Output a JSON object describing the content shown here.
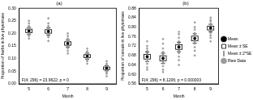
{
  "chart_data": [
    {
      "type": "box",
      "title": "(a)",
      "x_label": "Month",
      "y_label": "Proportion of herbs in live phytomass",
      "annotation": "F(4; 296) = 23.9622; p = 0",
      "x": [
        5,
        6,
        7,
        8,
        9
      ],
      "xlim": [
        4.5,
        9.5
      ],
      "xticks": [
        5,
        6,
        7,
        8,
        9
      ],
      "ylim": [
        0,
        0.3
      ],
      "yticks": [
        {
          "value": 0,
          "label": "0.00"
        },
        0.05,
        {
          "value": 0.1,
          "label": "0.10"
        },
        0.15,
        {
          "value": 0.2,
          "label": "0.20"
        },
        0.25,
        {
          "value": 0.3,
          "label": "0.30"
        }
      ],
      "grid": false,
      "series": [
        {
          "name": "Mean",
          "type": "scatter",
          "marker": "circle",
          "color": "#000000",
          "values": [
            0.21,
            0.208,
            0.16,
            0.11,
            0.062
          ]
        },
        {
          "name": "Mean ± SE",
          "type": "box",
          "marker": "square",
          "color": "#000000",
          "values": [
            [
              0.203,
              0.217
            ],
            [
              0.201,
              0.215
            ],
            [
              0.153,
              0.167
            ],
            [
              0.104,
              0.116
            ],
            [
              0.057,
              0.067
            ]
          ]
        },
        {
          "name": "Mean ± 2*SE",
          "type": "errorbar",
          "marker": "whisker",
          "color": "#000000",
          "values": [
            [
              0.196,
              0.224
            ],
            [
              0.194,
              0.222
            ],
            [
              0.146,
              0.174
            ],
            [
              0.098,
              0.122
            ],
            [
              0.052,
              0.072
            ]
          ]
        },
        {
          "name": "Raw Data",
          "type": "scatter",
          "marker": "circle",
          "color": "#9a9a9a",
          "values": [
            [
              0.18,
              0.19,
              0.195,
              0.2,
              0.205,
              0.21,
              0.21,
              0.215,
              0.22,
              0.225,
              0.23,
              0.24,
              0.25
            ],
            [
              0.17,
              0.185,
              0.19,
              0.2,
              0.205,
              0.21,
              0.215,
              0.22,
              0.225,
              0.23,
              0.24,
              0.26
            ],
            [
              0.12,
              0.13,
              0.14,
              0.15,
              0.155,
              0.16,
              0.165,
              0.17,
              0.175,
              0.18,
              0.19,
              0.2
            ],
            [
              0.08,
              0.09,
              0.095,
              0.1,
              0.105,
              0.11,
              0.115,
              0.12,
              0.125,
              0.13,
              0.14
            ],
            [
              0.03,
              0.04,
              0.045,
              0.05,
              0.055,
              0.06,
              0.065,
              0.07,
              0.075,
              0.08,
              0.09
            ]
          ]
        }
      ]
    },
    {
      "type": "box",
      "title": "(b)",
      "x_label": "Month",
      "y_label": "Proportion of cereals in live phytomass",
      "annotation": "F(4; 296) = 8.1206; p = 0.000003",
      "x": [
        5,
        6,
        7,
        8,
        9
      ],
      "xlim": [
        4.5,
        9.5
      ],
      "xticks": [
        5,
        6,
        7,
        8,
        9
      ],
      "ylim": [
        0.56,
        0.88
      ],
      "yticks": [
        0.56,
        {
          "value": 0.6,
          "label": "0.60"
        },
        0.64,
        0.68,
        0.72,
        0.76,
        {
          "value": 0.8,
          "label": "0.80"
        },
        0.84,
        0.88
      ],
      "grid": false,
      "legend": "right",
      "series": [
        {
          "name": "Mean",
          "type": "scatter",
          "marker": "circle",
          "color": "#000000",
          "values": [
            0.675,
            0.668,
            0.716,
            0.752,
            0.796
          ]
        },
        {
          "name": "Mean ± SE",
          "type": "box",
          "marker": "square",
          "color": "#000000",
          "values": [
            [
              0.665,
              0.685
            ],
            [
              0.657,
              0.679
            ],
            [
              0.706,
              0.726
            ],
            [
              0.742,
              0.762
            ],
            [
              0.788,
              0.804
            ]
          ]
        },
        {
          "name": "Mean ± 2*SE",
          "type": "errorbar",
          "marker": "whisker",
          "color": "#000000",
          "values": [
            [
              0.655,
              0.695
            ],
            [
              0.646,
              0.69
            ],
            [
              0.696,
              0.736
            ],
            [
              0.732,
              0.772
            ],
            [
              0.78,
              0.812
            ]
          ]
        },
        {
          "name": "Raw Data",
          "type": "scatter",
          "marker": "circle",
          "color": "#9a9a9a",
          "values": [
            [
              0.62,
              0.63,
              0.645,
              0.655,
              0.665,
              0.675,
              0.68,
              0.69,
              0.7,
              0.71,
              0.72,
              0.74
            ],
            [
              0.61,
              0.62,
              0.635,
              0.65,
              0.66,
              0.665,
              0.675,
              0.685,
              0.695,
              0.71,
              0.73,
              0.75
            ],
            [
              0.64,
              0.66,
              0.675,
              0.69,
              0.7,
              0.71,
              0.72,
              0.73,
              0.74,
              0.755,
              0.77,
              0.78
            ],
            [
              0.68,
              0.7,
              0.715,
              0.73,
              0.74,
              0.75,
              0.755,
              0.765,
              0.775,
              0.79,
              0.8,
              0.82
            ],
            [
              0.74,
              0.755,
              0.765,
              0.775,
              0.785,
              0.79,
              0.8,
              0.81,
              0.815,
              0.825,
              0.83,
              0.84
            ]
          ]
        }
      ]
    }
  ]
}
